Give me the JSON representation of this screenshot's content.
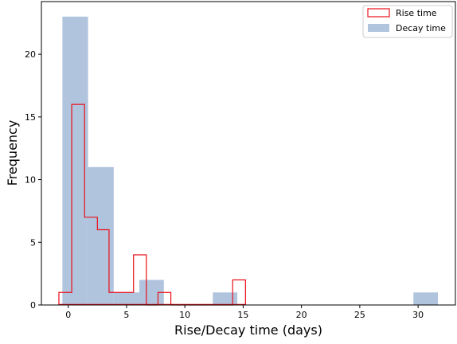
{
  "chart_data": {
    "type": "histogram",
    "xlabel": "Rise/Decay time (days)",
    "ylabel": "Frequency",
    "xlim": [
      -2.3,
      33.2
    ],
    "ylim": [
      0,
      24.2
    ],
    "xticks": [
      0,
      5,
      10,
      15,
      20,
      25,
      30
    ],
    "yticks": [
      0,
      5,
      10,
      15,
      20
    ],
    "legend_position": "top-right",
    "series": [
      {
        "name": "Decay time",
        "style": "filled",
        "color": "#b0c4de",
        "bins": [
          {
            "x0": -0.5,
            "x1": 1.7,
            "count": 23
          },
          {
            "x0": 1.7,
            "x1": 3.9,
            "count": 11
          },
          {
            "x0": 3.9,
            "x1": 6.1,
            "count": 1
          },
          {
            "x0": 6.1,
            "x1": 8.2,
            "count": 2
          },
          {
            "x0": 12.4,
            "x1": 14.5,
            "count": 1
          },
          {
            "x0": 29.6,
            "x1": 31.7,
            "count": 1
          }
        ]
      },
      {
        "name": "Rise time",
        "style": "step",
        "color": "#e8101a",
        "bins": [
          {
            "x0": -0.8,
            "x1": 0.3,
            "count": 1
          },
          {
            "x0": 0.3,
            "x1": 1.4,
            "count": 16
          },
          {
            "x0": 1.4,
            "x1": 2.5,
            "count": 7
          },
          {
            "x0": 2.5,
            "x1": 3.5,
            "count": 6
          },
          {
            "x0": 3.5,
            "x1": 4.6,
            "count": 1
          },
          {
            "x0": 4.6,
            "x1": 5.6,
            "count": 1
          },
          {
            "x0": 5.6,
            "x1": 6.7,
            "count": 4
          },
          {
            "x0": 6.7,
            "x1": 7.7,
            "count": 0
          },
          {
            "x0": 7.7,
            "x1": 8.8,
            "count": 1
          },
          {
            "x0": 8.8,
            "x1": 14.1,
            "count": 0
          },
          {
            "x0": 14.1,
            "x1": 15.2,
            "count": 2
          }
        ]
      }
    ]
  }
}
